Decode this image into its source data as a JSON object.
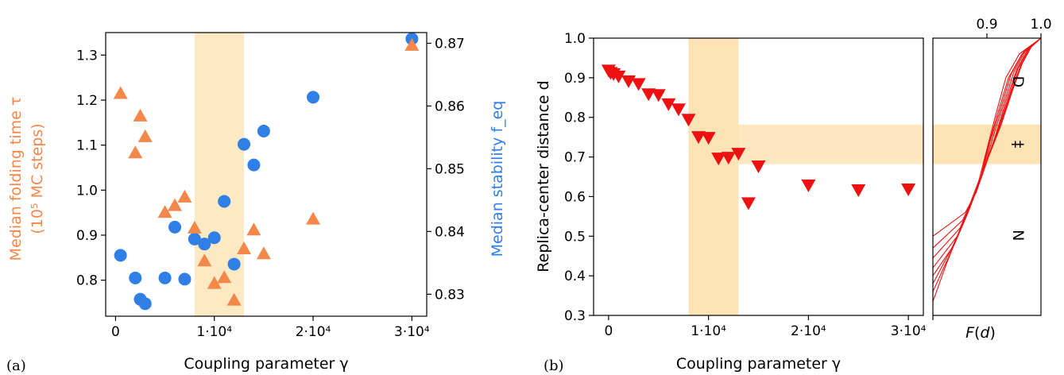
{
  "figure": {
    "panel_a_label": "(a)",
    "panel_b_label": "(b)"
  },
  "colors": {
    "tau": "#f4874a",
    "stability": "#2f7fe6",
    "distance": "#ee1111",
    "band": "#fde9c4",
    "band_b": "#fde3b6"
  },
  "chart_data": [
    {
      "type": "scatter",
      "panel": "(a)",
      "xlabel": "Coupling parameter γ",
      "ylabel_left_line1": "Median folding time τ",
      "ylabel_left_line2": "(10⁵ MC steps)",
      "ylabel_right": "Median stability f_eq",
      "xlim": [
        -1000,
        31500
      ],
      "ylim_left": [
        0.72,
        1.35
      ],
      "ylim_right": [
        0.8265,
        0.8717
      ],
      "x_ticks": [
        0,
        10000,
        20000,
        30000
      ],
      "x_tick_labels": [
        "0",
        "1·10⁴",
        "2·10⁴",
        "3·10⁴"
      ],
      "y_left_ticks": [
        0.8,
        0.9,
        1.0,
        1.1,
        1.2,
        1.3
      ],
      "y_left_tick_labels": [
        "0.8",
        "0.9",
        "1.0",
        "1.1",
        "1.2",
        "1.3"
      ],
      "y_right_ticks": [
        0.83,
        0.84,
        0.85,
        0.86,
        0.87
      ],
      "y_right_tick_labels": [
        "0.83",
        "0.84",
        "0.85",
        "0.86",
        "0.87"
      ],
      "shaded_x_range": [
        8000,
        13000
      ],
      "series": [
        {
          "axis": "left",
          "marker": "triangle",
          "points": [
            [
              500,
              1.215
            ],
            [
              2000,
              1.083
            ],
            [
              2500,
              1.165
            ],
            [
              3000,
              1.119
            ],
            [
              5000,
              0.951
            ],
            [
              6000,
              0.966
            ],
            [
              7000,
              0.985
            ],
            [
              8000,
              0.916
            ],
            [
              9000,
              0.843
            ],
            [
              10000,
              0.793
            ],
            [
              11000,
              0.806
            ],
            [
              12000,
              0.756
            ],
            [
              13000,
              0.87
            ],
            [
              14000,
              0.912
            ],
            [
              15000,
              0.859
            ],
            [
              20000,
              0.936
            ],
            [
              30000,
              1.322
            ]
          ]
        },
        {
          "axis": "right",
          "marker": "circle",
          "points": [
            [
              500,
              0.8362
            ],
            [
              2000,
              0.8326
            ],
            [
              2500,
              0.8292
            ],
            [
              3000,
              0.8285
            ],
            [
              5000,
              0.8326
            ],
            [
              6000,
              0.8407
            ],
            [
              7000,
              0.8324
            ],
            [
              8000,
              0.8388
            ],
            [
              9000,
              0.838
            ],
            [
              10000,
              0.839
            ],
            [
              11000,
              0.8448
            ],
            [
              12000,
              0.8348
            ],
            [
              13000,
              0.8539
            ],
            [
              14000,
              0.8506
            ],
            [
              15000,
              0.856
            ],
            [
              20000,
              0.8614
            ],
            [
              30000,
              0.8707
            ]
          ]
        }
      ]
    },
    {
      "type": "scatter",
      "panel": "(b)",
      "xlabel": "Coupling parameter γ",
      "ylabel": "Replica-center distance d",
      "xlim": [
        -1500,
        31500
      ],
      "ylim": [
        0.3,
        1.0
      ],
      "x_ticks": [
        0,
        10000,
        20000,
        30000
      ],
      "x_tick_labels": [
        "0",
        "1·10⁴",
        "2·10⁴",
        "3·10⁴"
      ],
      "y_ticks": [
        0.3,
        0.4,
        0.5,
        0.6,
        0.7,
        0.8,
        0.9,
        1.0
      ],
      "y_tick_labels": [
        "0.3",
        "0.4",
        "0.5",
        "0.6",
        "0.7",
        "0.8",
        "0.9",
        "1.0"
      ],
      "shaded_x_range": [
        8000,
        13000
      ],
      "shaded_y_range": [
        0.682,
        0.782
      ],
      "series": [
        {
          "marker": "triangle-down",
          "points": [
            [
              0,
              0.919
            ],
            [
              200,
              0.913
            ],
            [
              500,
              0.91
            ],
            [
              1000,
              0.904
            ],
            [
              2000,
              0.892
            ],
            [
              3000,
              0.885
            ],
            [
              4000,
              0.859
            ],
            [
              5000,
              0.857
            ],
            [
              6000,
              0.834
            ],
            [
              7000,
              0.821
            ],
            [
              8000,
              0.795
            ],
            [
              9000,
              0.751
            ],
            [
              10000,
              0.749
            ],
            [
              11000,
              0.697
            ],
            [
              12000,
              0.699
            ],
            [
              13000,
              0.709
            ],
            [
              14000,
              0.584
            ],
            [
              15000,
              0.677
            ],
            [
              20000,
              0.629
            ],
            [
              25000,
              0.617
            ],
            [
              30000,
              0.619
            ]
          ]
        }
      ]
    },
    {
      "type": "line",
      "panel": "side",
      "xlabel": "F(d)",
      "xlim": [
        0.8,
        1.0
      ],
      "ylim": [
        0.3,
        1.0
      ],
      "x_ticks": [
        0.9,
        1.0
      ],
      "x_tick_labels": [
        "0.9",
        "1.0"
      ],
      "region_labels": [
        "D",
        "‡",
        "N"
      ],
      "shaded_y_range": [
        0.682,
        0.782
      ],
      "curves": [
        [
          [
            0.8,
            0.335
          ],
          [
            0.825,
            0.43
          ],
          [
            0.86,
            0.55
          ],
          [
            0.885,
            0.64
          ],
          [
            0.9,
            0.72
          ],
          [
            0.915,
            0.8
          ],
          [
            0.935,
            0.9
          ],
          [
            0.96,
            0.96
          ],
          [
            1.0,
            1.0
          ]
        ],
        [
          [
            0.8,
            0.36
          ],
          [
            0.83,
            0.45
          ],
          [
            0.862,
            0.55
          ],
          [
            0.887,
            0.64
          ],
          [
            0.903,
            0.73
          ],
          [
            0.92,
            0.81
          ],
          [
            0.94,
            0.9
          ],
          [
            0.965,
            0.96
          ],
          [
            1.0,
            1.0
          ]
        ],
        [
          [
            0.8,
            0.38
          ],
          [
            0.835,
            0.47
          ],
          [
            0.865,
            0.56
          ],
          [
            0.89,
            0.65
          ],
          [
            0.906,
            0.74
          ],
          [
            0.925,
            0.82
          ],
          [
            0.945,
            0.91
          ],
          [
            0.968,
            0.965
          ],
          [
            1.0,
            1.0
          ]
        ],
        [
          [
            0.8,
            0.4
          ],
          [
            0.84,
            0.48
          ],
          [
            0.868,
            0.57
          ],
          [
            0.893,
            0.66
          ],
          [
            0.91,
            0.745
          ],
          [
            0.93,
            0.83
          ],
          [
            0.95,
            0.915
          ],
          [
            0.972,
            0.97
          ],
          [
            1.0,
            1.0
          ]
        ],
        [
          [
            0.8,
            0.42
          ],
          [
            0.845,
            0.5
          ],
          [
            0.87,
            0.58
          ],
          [
            0.895,
            0.67
          ],
          [
            0.915,
            0.75
          ],
          [
            0.935,
            0.84
          ],
          [
            0.955,
            0.92
          ],
          [
            0.975,
            0.97
          ],
          [
            1.0,
            1.0
          ]
        ],
        [
          [
            0.8,
            0.445
          ],
          [
            0.85,
            0.52
          ],
          [
            0.873,
            0.59
          ],
          [
            0.897,
            0.68
          ],
          [
            0.918,
            0.76
          ],
          [
            0.94,
            0.85
          ],
          [
            0.958,
            0.925
          ],
          [
            0.978,
            0.975
          ],
          [
            1.0,
            1.0
          ]
        ],
        [
          [
            0.8,
            0.47
          ],
          [
            0.855,
            0.54
          ],
          [
            0.876,
            0.6
          ],
          [
            0.9,
            0.69
          ],
          [
            0.922,
            0.77
          ],
          [
            0.944,
            0.86
          ],
          [
            0.962,
            0.93
          ],
          [
            0.98,
            0.975
          ],
          [
            1.0,
            1.0
          ]
        ],
        [
          [
            0.8,
            0.5
          ],
          [
            0.86,
            0.56
          ],
          [
            0.88,
            0.61
          ],
          [
            0.903,
            0.7
          ],
          [
            0.926,
            0.78
          ],
          [
            0.948,
            0.87
          ],
          [
            0.965,
            0.935
          ],
          [
            0.983,
            0.98
          ],
          [
            1.0,
            1.0
          ]
        ]
      ]
    }
  ]
}
